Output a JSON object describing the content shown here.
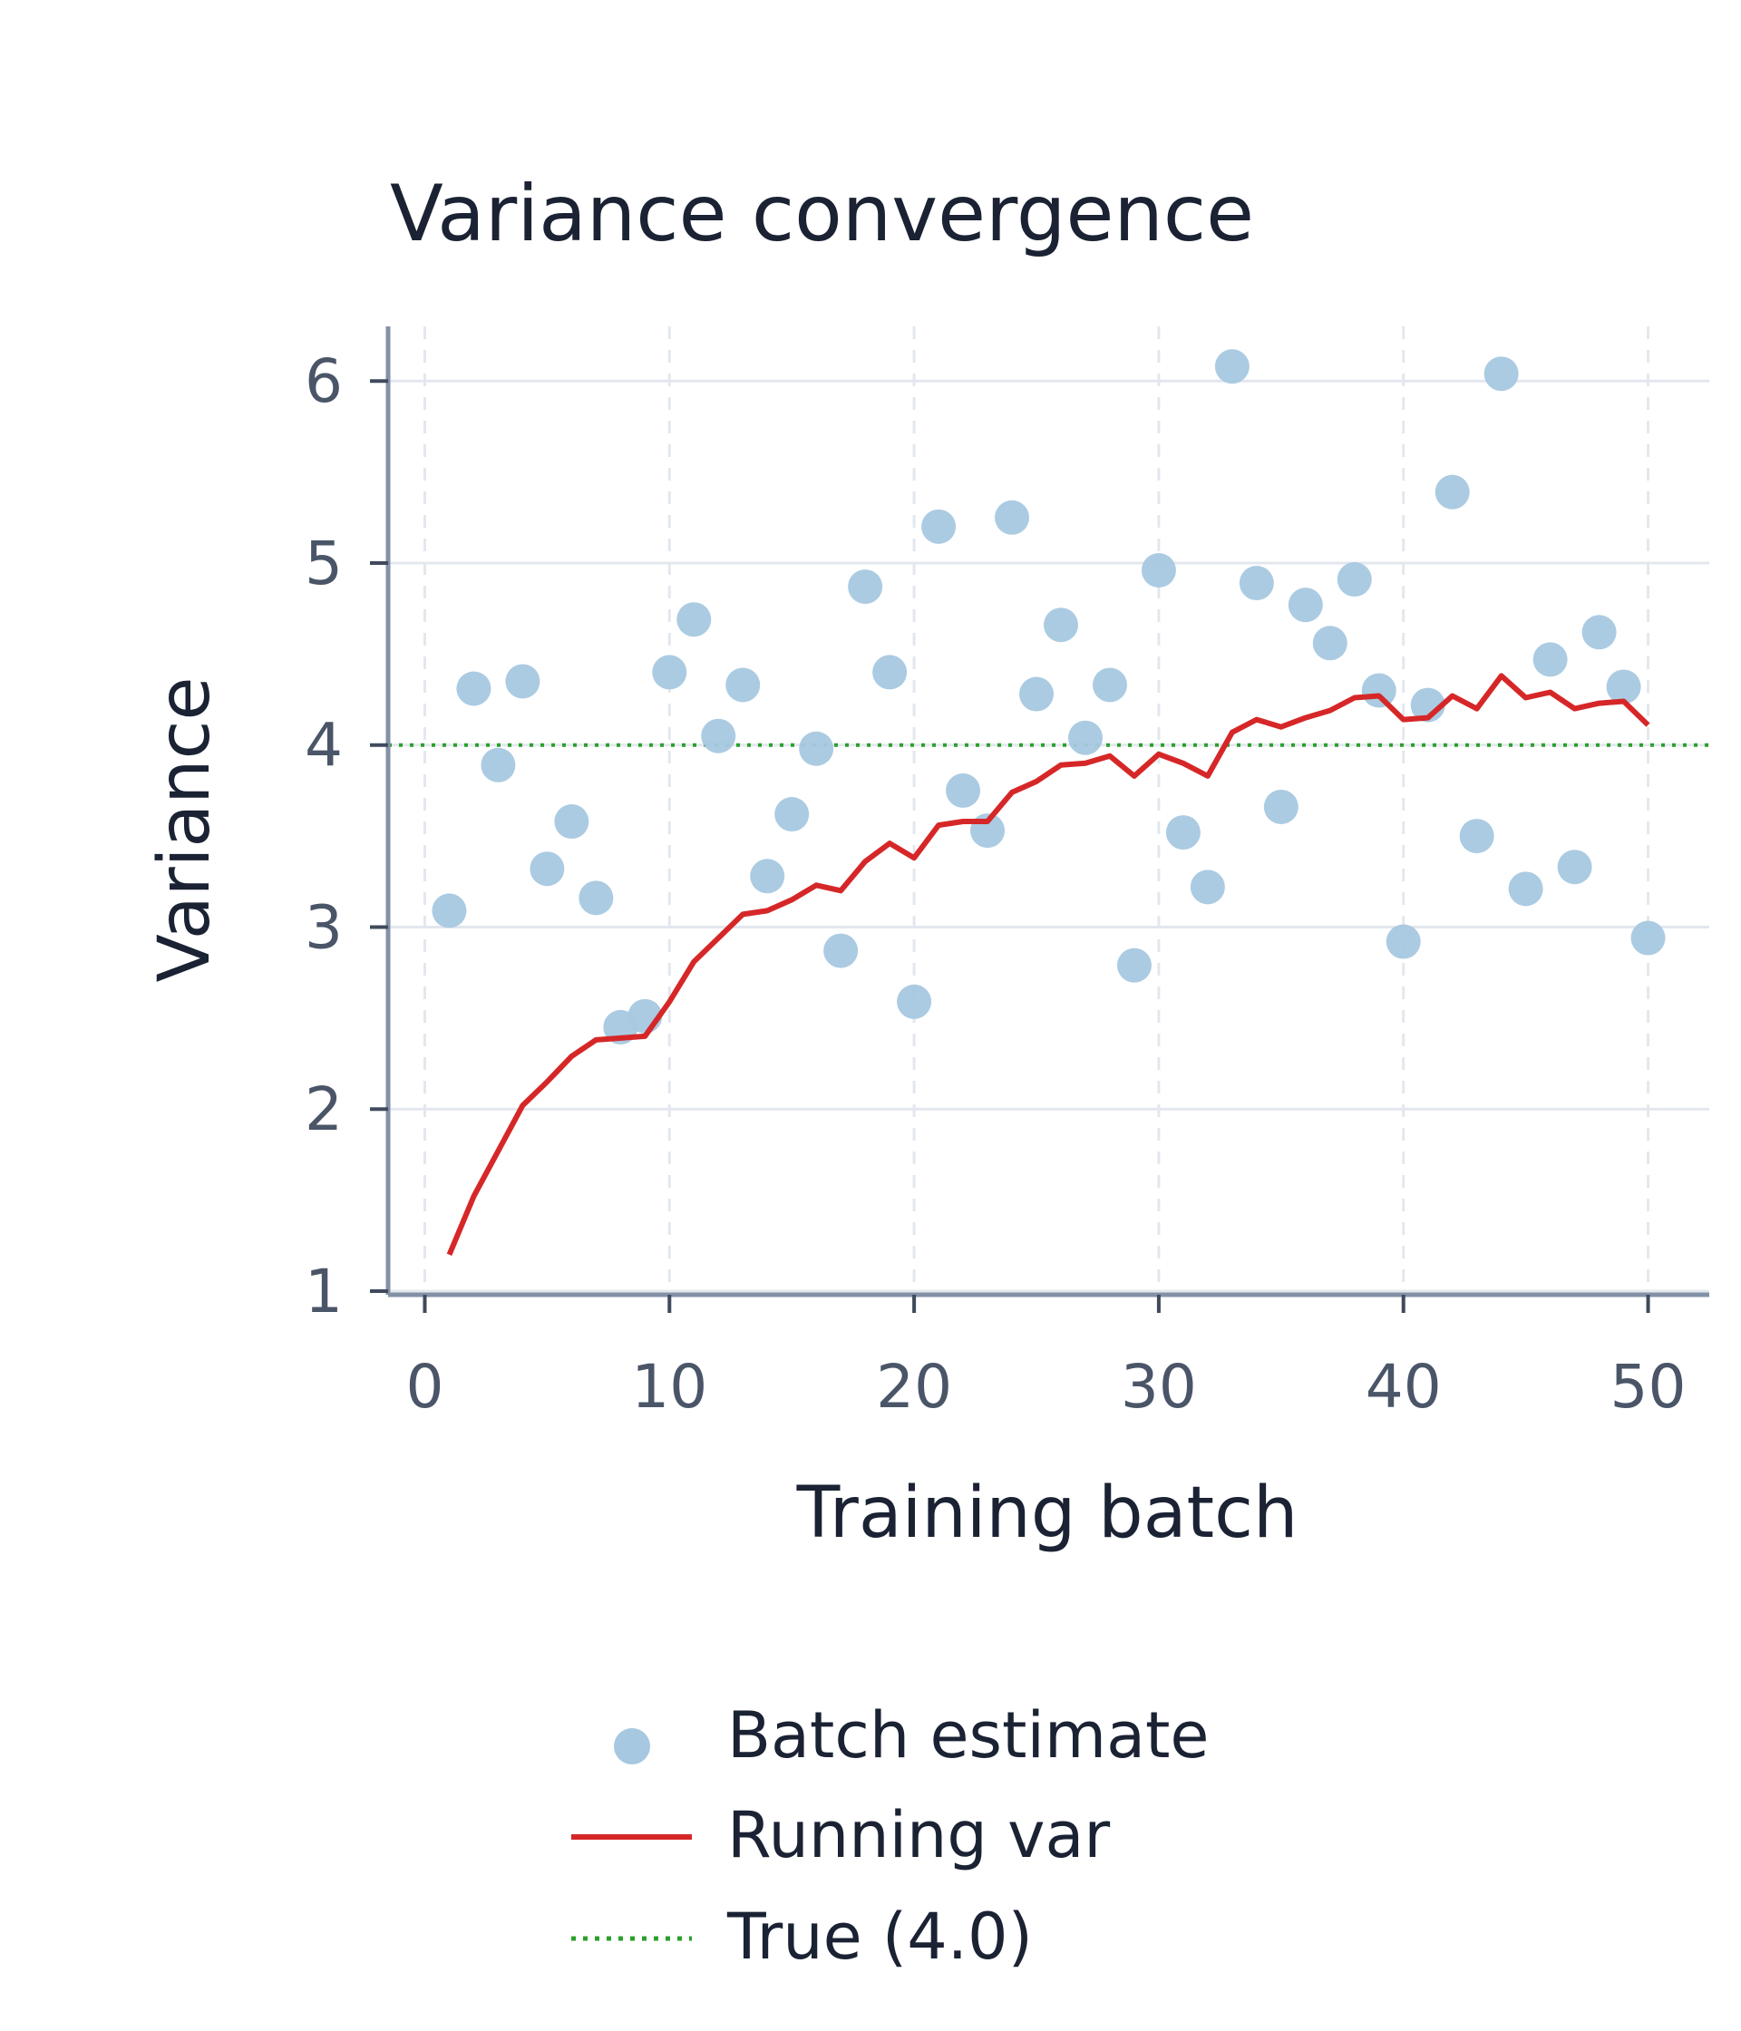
{
  "chart_data": {
    "type": "scatter",
    "title": "Variance convergence",
    "xlabel": "Training batch",
    "ylabel": "Variance",
    "xlim": [
      -1.5,
      52.5
    ],
    "ylim": [
      0.98,
      6.3
    ],
    "xticks": [
      0,
      10,
      20,
      30,
      40,
      50
    ],
    "yticks": [
      1,
      2,
      3,
      4,
      5,
      6
    ],
    "grid": true,
    "legend_position": "bottom",
    "series": [
      {
        "name": "Batch estimate",
        "kind": "scatter",
        "color": "#a6c8e0",
        "x": [
          1,
          2,
          3,
          4,
          5,
          6,
          7,
          8,
          9,
          10,
          11,
          12,
          13,
          14,
          15,
          16,
          17,
          18,
          19,
          20,
          21,
          22,
          23,
          24,
          25,
          26,
          27,
          28,
          29,
          30,
          31,
          32,
          33,
          34,
          35,
          36,
          37,
          38,
          39,
          40,
          41,
          42,
          43,
          44,
          45,
          46,
          47,
          48,
          49,
          50
        ],
        "y": [
          3.09,
          4.31,
          3.89,
          4.35,
          3.32,
          3.58,
          3.16,
          2.45,
          2.51,
          4.4,
          4.69,
          4.05,
          4.33,
          3.28,
          3.62,
          3.98,
          2.87,
          4.87,
          4.4,
          2.59,
          5.2,
          3.75,
          3.53,
          5.25,
          4.28,
          4.66,
          4.04,
          4.33,
          2.79,
          4.96,
          3.52,
          3.22,
          6.08,
          4.89,
          3.66,
          4.77,
          4.56,
          4.91,
          4.3,
          2.92,
          4.22,
          5.39,
          3.5,
          6.04,
          3.21,
          4.47,
          3.33,
          4.62,
          4.32,
          2.94
        ]
      },
      {
        "name": "Running var",
        "kind": "line",
        "color": "#d62728",
        "x": [
          1,
          2,
          3,
          4,
          5,
          6,
          7,
          8,
          9,
          10,
          11,
          12,
          13,
          14,
          15,
          16,
          17,
          18,
          19,
          20,
          21,
          22,
          23,
          24,
          25,
          26,
          27,
          28,
          29,
          30,
          31,
          32,
          33,
          34,
          35,
          36,
          37,
          38,
          39,
          40,
          41,
          42,
          43,
          44,
          45,
          46,
          47,
          48,
          49,
          50
        ],
        "y": [
          1.2,
          1.52,
          1.77,
          2.02,
          2.15,
          2.29,
          2.38,
          2.39,
          2.4,
          2.59,
          2.81,
          2.94,
          3.07,
          3.09,
          3.15,
          3.23,
          3.2,
          3.36,
          3.46,
          3.38,
          3.56,
          3.58,
          3.58,
          3.74,
          3.8,
          3.89,
          3.9,
          3.94,
          3.83,
          3.95,
          3.9,
          3.83,
          4.07,
          4.14,
          4.1,
          4.15,
          4.19,
          4.26,
          4.27,
          4.14,
          4.15,
          4.27,
          4.2,
          4.38,
          4.26,
          4.29,
          4.2,
          4.23,
          4.24,
          4.11
        ]
      },
      {
        "name": "True (4.0)",
        "kind": "hline",
        "color": "#2ca02c",
        "value": 4.0
      }
    ]
  }
}
